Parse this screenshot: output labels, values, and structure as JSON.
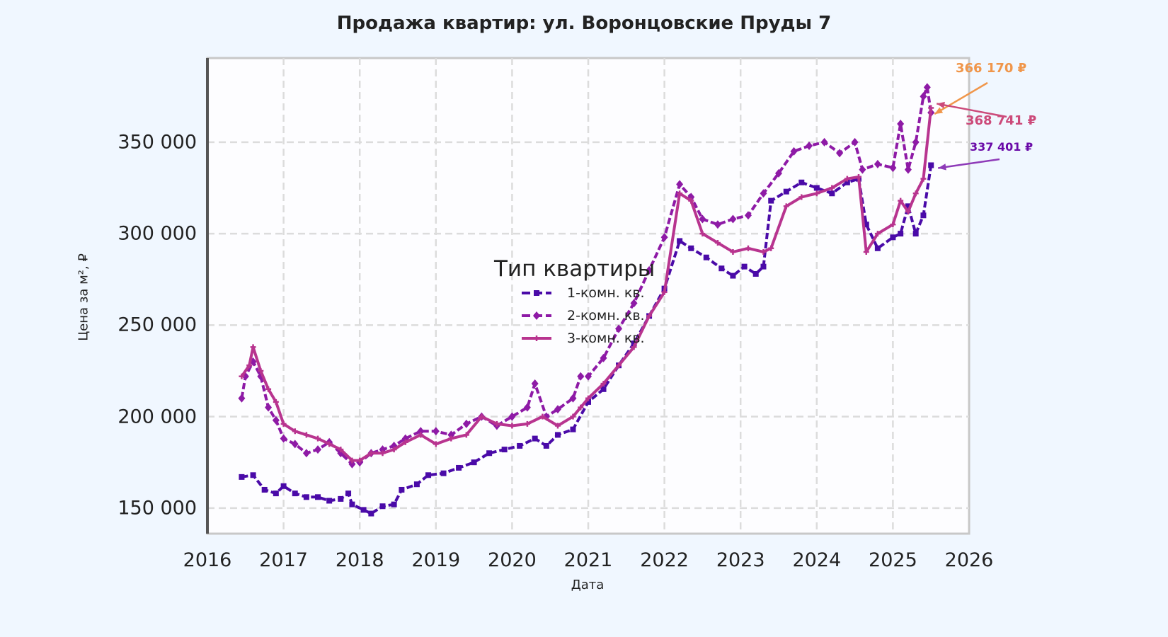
{
  "title": "Продажа квартир: ул. Воронцовские Пруды 7",
  "chart_data": {
    "type": "line",
    "title": "Продажа квартир: ул. Воронцовские Пруды 7",
    "xlabel": "Дата",
    "ylabel": "Цена за м², ₽",
    "xlim": [
      2016,
      2026
    ],
    "ylim": [
      136000,
      396000
    ],
    "x_ticks": [
      "2016",
      "2017",
      "2018",
      "2019",
      "2020",
      "2021",
      "2022",
      "2023",
      "2024",
      "2025",
      "2026"
    ],
    "y_ticks": [
      {
        "value": 150000,
        "label": "150 000"
      },
      {
        "value": 200000,
        "label": "200 000"
      },
      {
        "value": 250000,
        "label": "250 000"
      },
      {
        "value": 300000,
        "label": "300 000"
      },
      {
        "value": 350000,
        "label": "350 000"
      }
    ],
    "grid": true,
    "legend": {
      "title": "Тип квартиры",
      "position": "center"
    },
    "series": [
      {
        "name": "1-комн. кв.",
        "color": "#4a0aa8",
        "style": "dashed",
        "marker": "square",
        "x": [
          2016.45,
          2016.6,
          2016.75,
          2016.9,
          2017.0,
          2017.15,
          2017.3,
          2017.45,
          2017.6,
          2017.75,
          2017.85,
          2017.9,
          2018.05,
          2018.15,
          2018.3,
          2018.45,
          2018.55,
          2018.75,
          2018.9,
          2019.1,
          2019.3,
          2019.5,
          2019.7,
          2019.9,
          2020.1,
          2020.3,
          2020.45,
          2020.6,
          2020.8,
          2021.0,
          2021.2,
          2021.4,
          2021.6,
          2021.8,
          2022.0,
          2022.2,
          2022.35,
          2022.55,
          2022.75,
          2022.9,
          2023.05,
          2023.2,
          2023.3,
          2023.4,
          2023.6,
          2023.8,
          2024.0,
          2024.2,
          2024.4,
          2024.55,
          2024.65,
          2024.8,
          2025.0,
          2025.1,
          2025.2,
          2025.3,
          2025.4,
          2025.5
        ],
        "values": [
          167000,
          168000,
          160000,
          158000,
          162000,
          158000,
          156000,
          156000,
          154000,
          155000,
          158000,
          152000,
          149000,
          147000,
          151000,
          152000,
          160000,
          163000,
          168000,
          169000,
          172000,
          175000,
          180000,
          182000,
          184000,
          188000,
          184000,
          190000,
          193000,
          208000,
          215000,
          228000,
          240000,
          255000,
          270000,
          296000,
          292000,
          287000,
          281000,
          277000,
          282000,
          278000,
          282000,
          318000,
          323000,
          328000,
          325000,
          322000,
          328000,
          330000,
          305000,
          292000,
          298000,
          300000,
          315000,
          300000,
          310000,
          337401
        ]
      },
      {
        "name": "2-комн. кв.",
        "color": "#8e1aa6",
        "style": "dashed",
        "marker": "diamond",
        "x": [
          2016.45,
          2016.5,
          2016.6,
          2016.7,
          2016.8,
          2016.9,
          2017.0,
          2017.15,
          2017.3,
          2017.45,
          2017.6,
          2017.75,
          2017.9,
          2018.0,
          2018.15,
          2018.3,
          2018.45,
          2018.6,
          2018.8,
          2019.0,
          2019.2,
          2019.4,
          2019.6,
          2019.8,
          2020.0,
          2020.2,
          2020.3,
          2020.45,
          2020.6,
          2020.8,
          2020.9,
          2021.0,
          2021.2,
          2021.4,
          2021.6,
          2021.8,
          2022.0,
          2022.2,
          2022.35,
          2022.5,
          2022.7,
          2022.9,
          2023.1,
          2023.3,
          2023.5,
          2023.7,
          2023.9,
          2024.1,
          2024.3,
          2024.5,
          2024.6,
          2024.8,
          2025.0,
          2025.1,
          2025.2,
          2025.3,
          2025.4,
          2025.45,
          2025.5
        ],
        "values": [
          210000,
          222000,
          230000,
          222000,
          205000,
          198000,
          188000,
          185000,
          180000,
          182000,
          186000,
          180000,
          174000,
          175000,
          180000,
          182000,
          184000,
          188000,
          192000,
          192000,
          190000,
          196000,
          200000,
          195000,
          200000,
          205000,
          218000,
          200000,
          204000,
          210000,
          222000,
          222000,
          232000,
          248000,
          262000,
          280000,
          298000,
          327000,
          320000,
          308000,
          305000,
          308000,
          310000,
          322000,
          333000,
          345000,
          348000,
          350000,
          344000,
          350000,
          335000,
          338000,
          336000,
          360000,
          335000,
          350000,
          375000,
          380000,
          366170
        ]
      },
      {
        "name": "3-комн. кв.",
        "color": "#b8348f",
        "style": "solid",
        "marker": "plus",
        "x": [
          2016.45,
          2016.55,
          2016.6,
          2016.7,
          2016.8,
          2016.9,
          2017.0,
          2017.15,
          2017.3,
          2017.45,
          2017.6,
          2017.75,
          2017.9,
          2018.0,
          2018.15,
          2018.3,
          2018.45,
          2018.6,
          2018.8,
          2019.0,
          2019.2,
          2019.4,
          2019.6,
          2019.8,
          2020.0,
          2020.2,
          2020.4,
          2020.6,
          2020.8,
          2020.9,
          2021.0,
          2021.2,
          2021.4,
          2021.6,
          2021.8,
          2022.0,
          2022.2,
          2022.35,
          2022.5,
          2022.7,
          2022.9,
          2023.1,
          2023.3,
          2023.4,
          2023.6,
          2023.8,
          2024.0,
          2024.2,
          2024.4,
          2024.55,
          2024.65,
          2024.8,
          2025.0,
          2025.1,
          2025.2,
          2025.3,
          2025.4,
          2025.5
        ],
        "values": [
          222000,
          228000,
          238000,
          225000,
          215000,
          208000,
          196000,
          192000,
          190000,
          188000,
          185000,
          182000,
          176000,
          176000,
          180000,
          180000,
          182000,
          186000,
          190000,
          185000,
          188000,
          190000,
          200000,
          196000,
          195000,
          196000,
          200000,
          195000,
          200000,
          205000,
          210000,
          218000,
          228000,
          238000,
          255000,
          268000,
          322000,
          318000,
          300000,
          295000,
          290000,
          292000,
          290000,
          292000,
          315000,
          320000,
          322000,
          325000,
          330000,
          331000,
          290000,
          300000,
          305000,
          318000,
          312000,
          322000,
          330000,
          368741
        ]
      }
    ],
    "annotations": [
      {
        "text": "366 170 ₽",
        "series": "2-комн. кв.",
        "value": 366170,
        "color": "#f0964a"
      },
      {
        "text": "368 741 ₽",
        "series": "3-комн. кв.",
        "value": 368741,
        "color": "#cc4a7a"
      },
      {
        "text": "337 401 ₽",
        "series": "1-комн. кв.",
        "value": 337401,
        "color": "#6a0aa8"
      }
    ]
  }
}
